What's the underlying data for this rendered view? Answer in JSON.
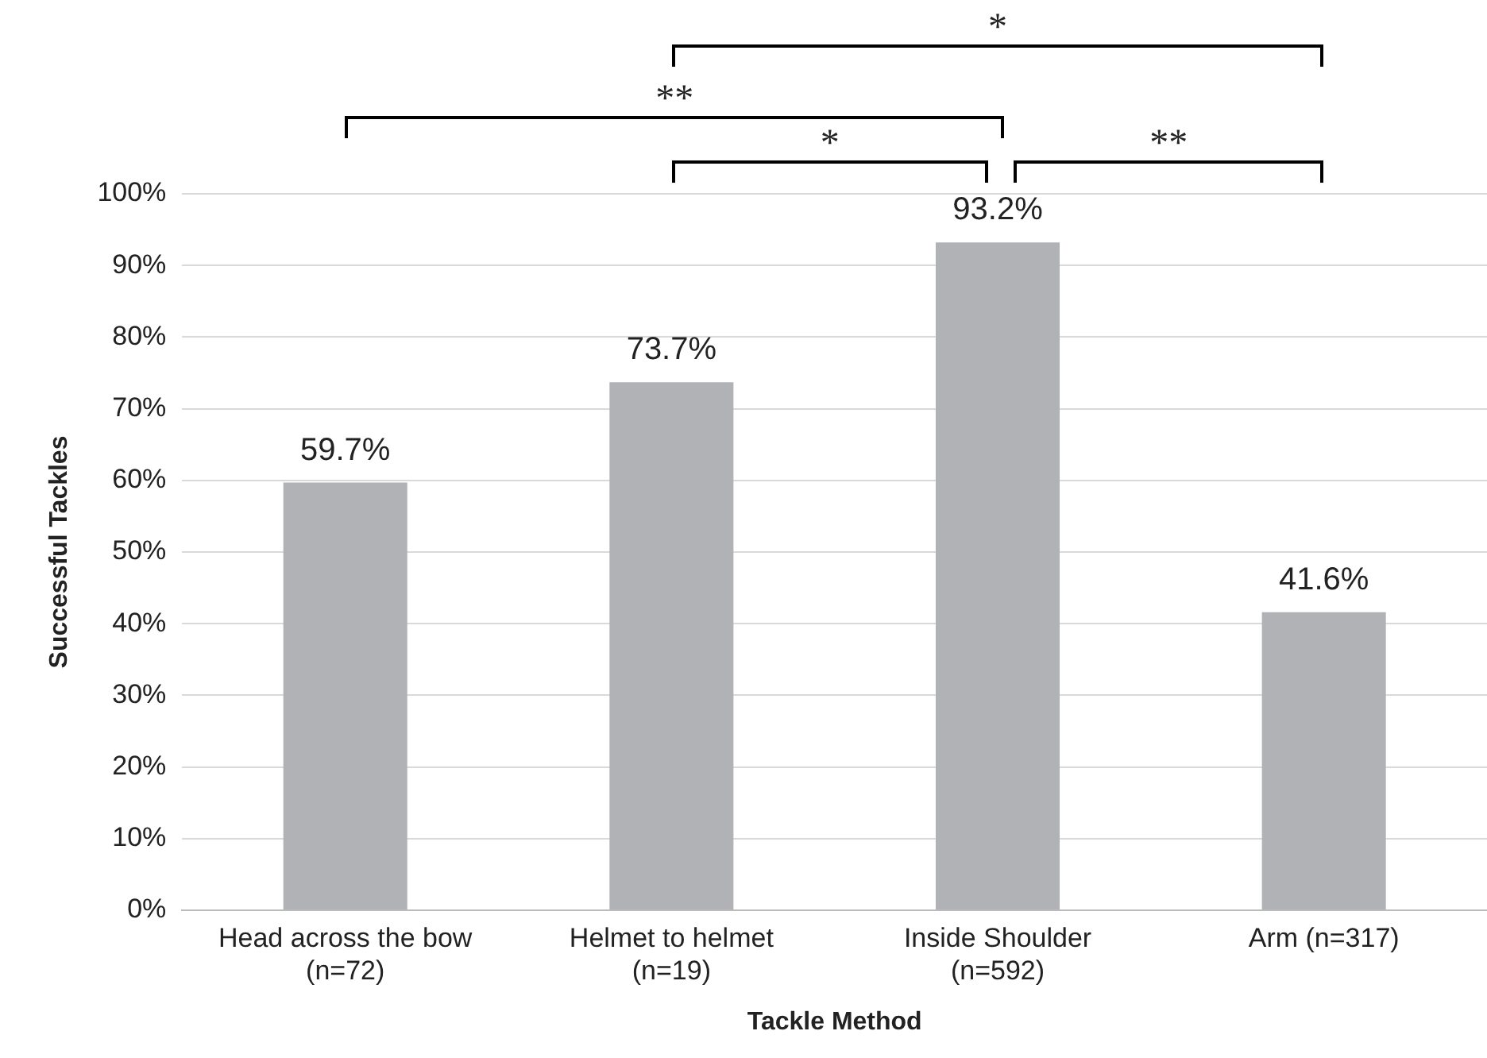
{
  "chart_data": {
    "type": "bar",
    "xlabel": "Tackle Method",
    "ylabel": "Successful Tackles",
    "categories": [
      "Head across the bow\n(n=72)",
      "Helmet to helmet\n(n=19)",
      "Inside Shoulder\n(n=592)",
      "Arm (n=317)"
    ],
    "values": [
      59.7,
      73.7,
      93.2,
      41.6
    ],
    "color": "#b1b2b6",
    "value_labels": [
      "59.7%",
      "73.7%",
      "93.2%",
      "41.6%"
    ],
    "ylim": [
      0,
      100
    ],
    "yticks": [
      {
        "value": 0,
        "label": "0%"
      },
      {
        "value": 10,
        "label": "10%"
      },
      {
        "value": 20,
        "label": "20%"
      },
      {
        "value": 30,
        "label": "30%"
      },
      {
        "value": 40,
        "label": "40%"
      },
      {
        "value": 50,
        "label": "50%"
      },
      {
        "value": 60,
        "label": "60%"
      },
      {
        "value": 70,
        "label": "70%"
      },
      {
        "value": 80,
        "label": "80%"
      },
      {
        "value": 90,
        "label": "90%"
      },
      {
        "value": 100,
        "label": "100%"
      }
    ],
    "grid": "y",
    "legend": false,
    "annotations": [
      "*",
      "**",
      "*",
      "**"
    ]
  }
}
